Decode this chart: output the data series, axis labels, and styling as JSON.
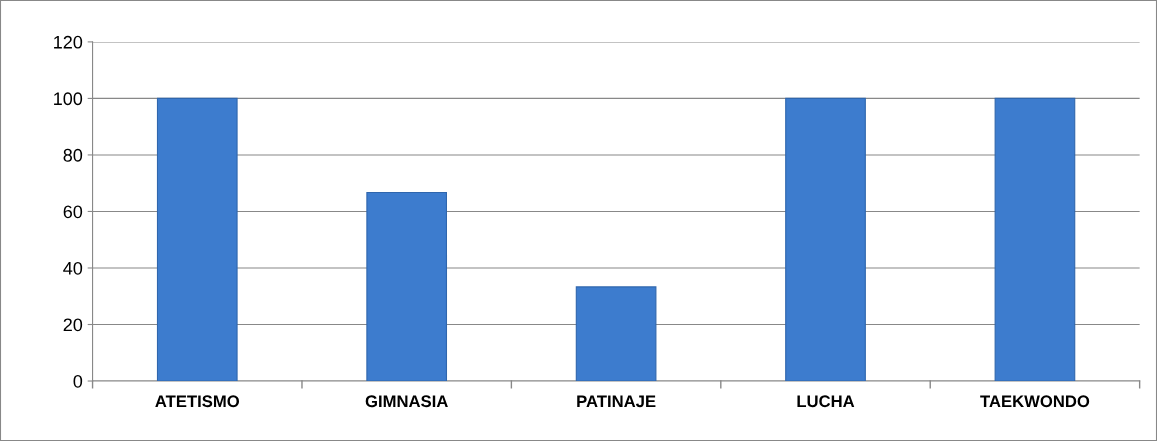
{
  "chart_data": {
    "type": "bar",
    "categories": [
      "ATETISMO",
      "GIMNASIA",
      "PATINAJE",
      "LUCHA",
      "TAEKWONDO"
    ],
    "values": [
      100,
      66.7,
      33.3,
      100,
      100
    ],
    "color": "#3d7cce",
    "ylim": [
      0,
      120
    ],
    "yticks": [
      0,
      20,
      40,
      60,
      80,
      100,
      120
    ],
    "grid": "y"
  }
}
